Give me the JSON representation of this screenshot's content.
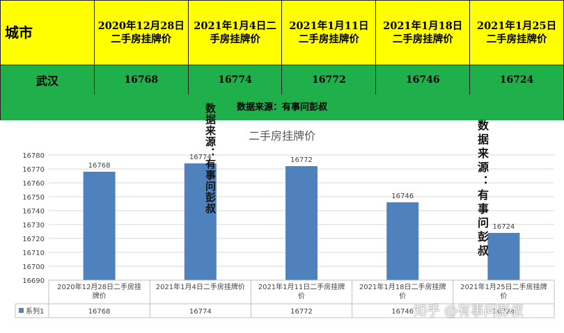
{
  "table": {
    "city_header": "城市",
    "columns": [
      "2020年12月28日二手房挂牌价",
      "2021年1月4日二手房挂牌价",
      "2021年1月11日二手房挂牌价",
      "2021年1月18日二手房挂牌价",
      "2021年1月25日二手房挂牌价"
    ],
    "city": "武汉",
    "values": [
      "16768",
      "16774",
      "16772",
      "16746",
      "16724"
    ],
    "colors": {
      "header_bg": "#ffff00",
      "row_bg": "#1fb04b"
    }
  },
  "source_note": "数据来源：有事问彭叔",
  "vertical_notes": [
    "数据来源：有事问彭叔",
    "数据来源：有事问彭叔"
  ],
  "watermark": "知乎 @有事问彭叔",
  "chart_data": {
    "type": "bar",
    "title": "二手房挂牌价",
    "categories": [
      "2020年12月28日二手房挂牌价",
      "2021年1月4日二手房挂牌价",
      "2021年1月11日二手房挂牌价",
      "2021年1月18日二手房挂牌价",
      "2021年1月25日二手房挂牌价"
    ],
    "series": [
      {
        "name": "系列1",
        "values": [
          16768,
          16774,
          16772,
          16746,
          16724
        ],
        "color": "#4f81bd"
      }
    ],
    "ylim": [
      16690,
      16780
    ],
    "yticks": [
      16690,
      16700,
      16710,
      16720,
      16730,
      16740,
      16750,
      16760,
      16770,
      16780
    ],
    "grid": true,
    "data_table": true
  }
}
